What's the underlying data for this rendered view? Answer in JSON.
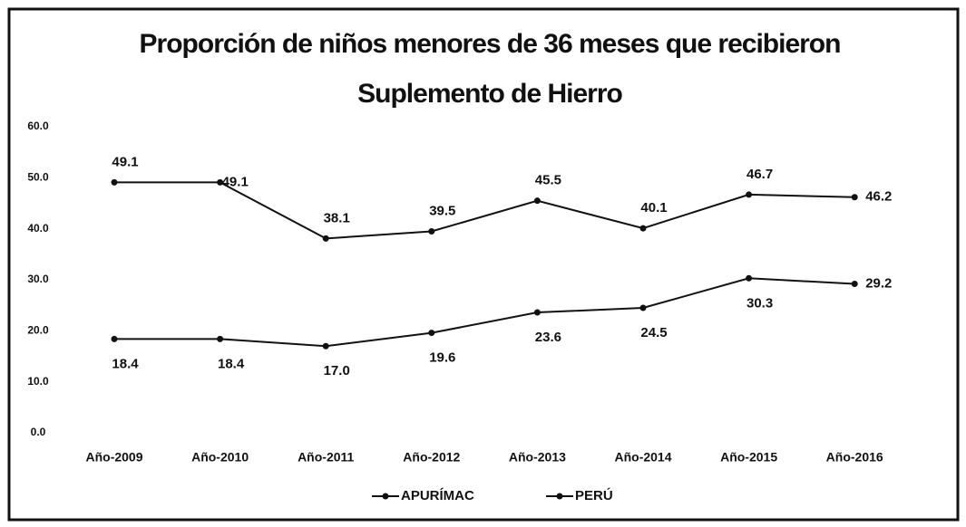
{
  "chart_data": {
    "type": "line",
    "title": [
      "Proporción de niños menores de 36 meses que recibieron",
      "Suplemento de Hierro"
    ],
    "categories": [
      "Año-2009",
      "Año-2010",
      "Año-2011",
      "Año-2012",
      "Año-2013",
      "Año-2014",
      "Año-2015",
      "Año-2016"
    ],
    "series": [
      {
        "name": "APURÍMAC",
        "color": "#111111",
        "values": [
          49.1,
          49.1,
          38.1,
          39.5,
          45.5,
          40.1,
          46.7,
          46.2
        ]
      },
      {
        "name": "PERÚ",
        "color": "#111111",
        "values": [
          18.4,
          18.4,
          17,
          19.6,
          23.6,
          24.5,
          30.3,
          29.2
        ],
        "value_labels": [
          "18.4",
          "18.4",
          "17.0",
          "19.6",
          "23.6",
          "24.5",
          "30.3",
          "29.2"
        ]
      }
    ],
    "ylim": [
      0,
      60
    ],
    "yticks": [
      {
        "value": 0,
        "label": "0.0"
      },
      {
        "value": 10,
        "label": "10.0"
      },
      {
        "value": 20,
        "label": "20.0"
      },
      {
        "value": 30,
        "label": "30.0"
      },
      {
        "value": 40,
        "label": "40.0"
      },
      {
        "value": 50,
        "label": "50.0"
      },
      {
        "value": 60,
        "label": "60.0"
      }
    ],
    "grid": false,
    "legend": "bottom"
  }
}
